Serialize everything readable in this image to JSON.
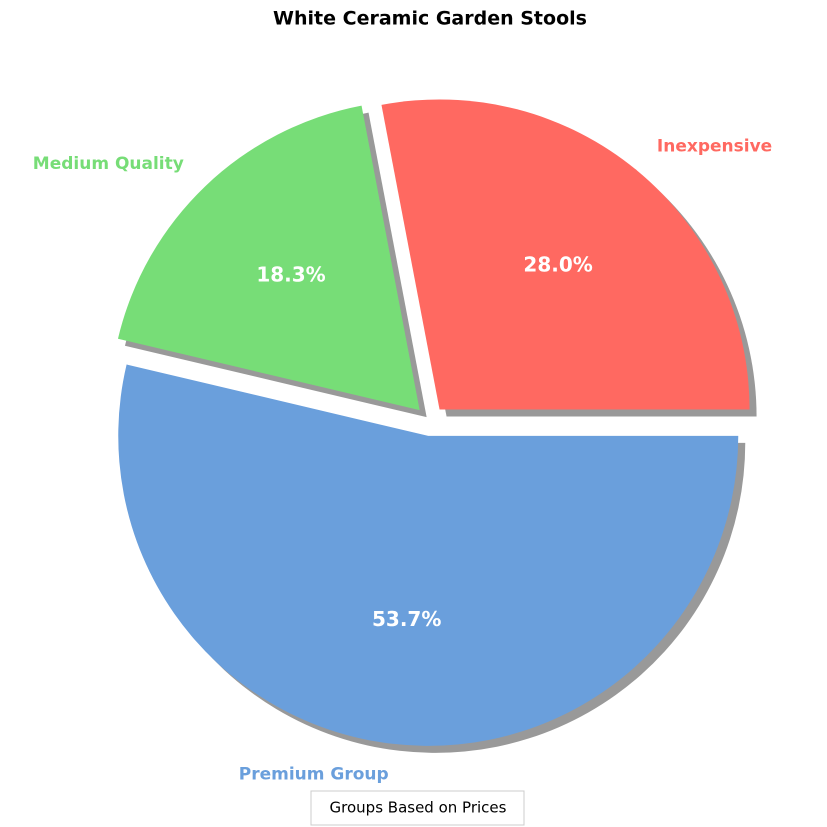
{
  "chart_data": {
    "type": "pie",
    "title": "White Ceramic Garden Stools",
    "categories": [
      "Inexpensive",
      "Medium Quality",
      "Premium Group"
    ],
    "values": [
      28.0,
      18.3,
      53.7
    ],
    "value_labels": [
      "28.0%",
      "18.3%",
      "53.7%"
    ],
    "colors": [
      "#ff6961",
      "#77dd77",
      "#6a9fdc"
    ],
    "legend_title": "Groups Based on Prices"
  }
}
